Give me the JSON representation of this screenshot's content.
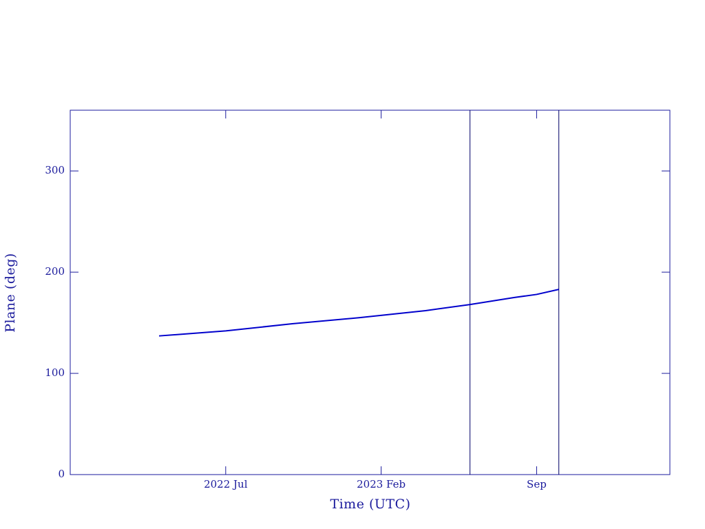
{
  "chart_data": {
    "type": "line",
    "xlabel": "Time (UTC)",
    "ylabel": "Plane (deg)",
    "x": [
      "2022-04",
      "2022-07",
      "2022-10",
      "2023-01",
      "2023-04",
      "2023-06",
      "2023-08",
      "2023-09",
      "2023-10"
    ],
    "series": [
      {
        "color": "#0000cc",
        "values": [
          137,
          142,
          149,
          155,
          162,
          168,
          175,
          178,
          183
        ]
      }
    ],
    "xlim": [
      "2021-12",
      "2024-03"
    ],
    "xticks": [
      {
        "value": "2022-07",
        "label": "2022 Jul"
      },
      {
        "value": "2023-02",
        "label": "2023 Feb"
      },
      {
        "value": "2023-09",
        "label": "Sep"
      }
    ],
    "ylim": [
      0,
      360
    ],
    "yticks": [
      0,
      100,
      200,
      300
    ],
    "vlines": [
      "2023-06",
      "2023-10"
    ],
    "axis_color": "#1a1a9c"
  }
}
